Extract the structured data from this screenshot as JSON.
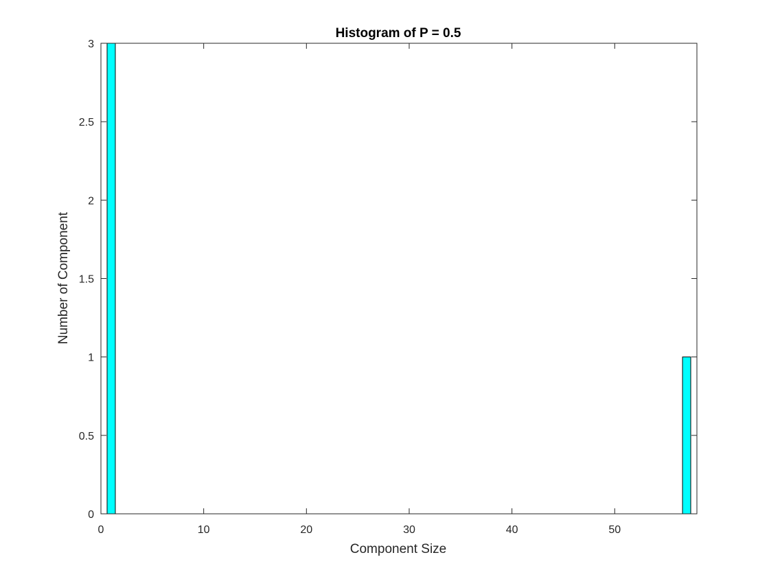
{
  "chart_data": {
    "type": "bar",
    "title": "Histogram of P = 0.5",
    "xlabel": "Component Size",
    "ylabel": "Number of Component",
    "xlim": [
      0,
      58
    ],
    "ylim": [
      0,
      3
    ],
    "xticks": [
      0,
      10,
      20,
      30,
      40,
      50
    ],
    "xtick_labels": [
      "0",
      "10",
      "20",
      "30",
      "40",
      "50"
    ],
    "yticks": [
      0,
      0.5,
      1,
      1.5,
      2,
      2.5,
      3
    ],
    "ytick_labels": [
      "0",
      "0.5",
      "1",
      "1.5",
      "2",
      "2.5",
      "3"
    ],
    "bar_width": 0.8,
    "bars": [
      {
        "x": 1,
        "value": 3
      },
      {
        "x": 57,
        "value": 1
      }
    ],
    "bar_color": "#00ffff",
    "edge_color": "#000000",
    "grid": false,
    "box": true
  }
}
